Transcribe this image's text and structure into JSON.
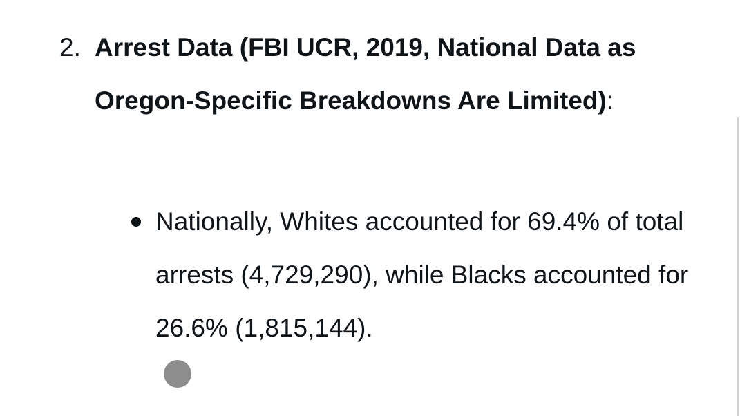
{
  "item": {
    "number": "2.",
    "title": "Arrest Data (FBI UCR, 2019, National Data as Oregon-Specific Breakdowns Are Limited)",
    "suffix": ":",
    "bullets": [
      "Nationally, Whites accounted for 69.4% of total arrests (4,729,290), while Blacks accounted for 26.6% (1,815,144)."
    ]
  }
}
